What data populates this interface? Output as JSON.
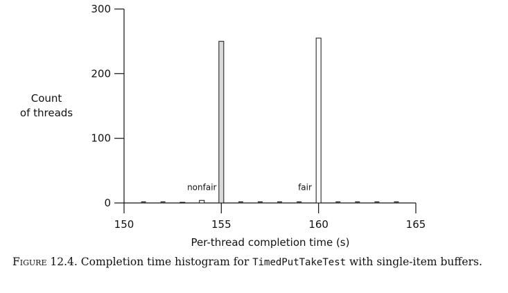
{
  "chart_data": {
    "type": "bar",
    "title": "",
    "xlabel": "Per-thread completion time (s)",
    "ylabel_lines": [
      "Count",
      "of threads"
    ],
    "xlim": [
      150,
      165
    ],
    "ylim": [
      0,
      300
    ],
    "xticks": [
      150,
      155,
      160,
      165
    ],
    "yticks": [
      0,
      100,
      200,
      300
    ],
    "grid": false,
    "bars": [
      {
        "x": 153,
        "value": 1,
        "fill": "#d9d9d9"
      },
      {
        "x": 154,
        "value": 4,
        "fill": "#ffffff"
      },
      {
        "x": 155,
        "value": 250,
        "fill": "#d9d9d9"
      },
      {
        "x": 160,
        "value": 255,
        "fill": "#ffffff"
      }
    ],
    "zero_markers": [
      151,
      152,
      156,
      157,
      158,
      159,
      161,
      162,
      163,
      164
    ],
    "annotations": [
      {
        "text": "nonfair",
        "x": 154,
        "y": 20
      },
      {
        "text": "fair",
        "x": 159.3,
        "y": 20
      }
    ]
  },
  "caption": {
    "prefix": "Figure 12.4.",
    "text_before": " Completion time histogram for ",
    "code": "TimedPutTakeTest",
    "text_after": " with single-item buffers."
  }
}
